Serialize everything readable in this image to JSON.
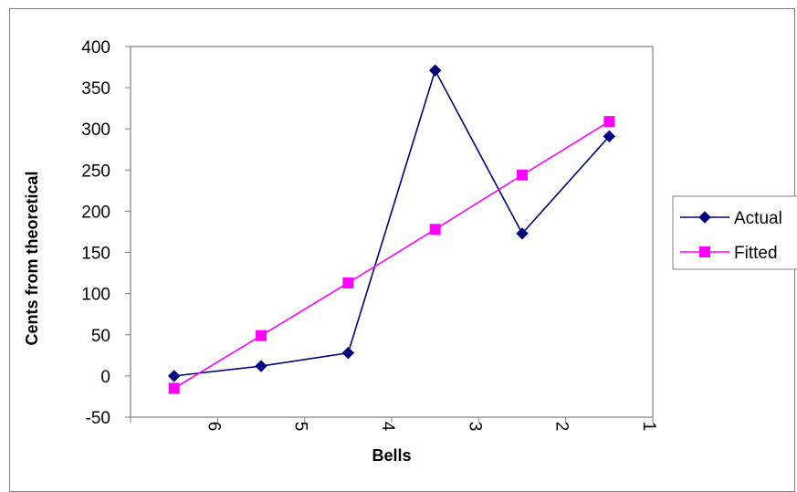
{
  "chart_data": {
    "type": "line",
    "title": "",
    "xlabel": "Bells",
    "ylabel": "Cents from theoretical",
    "categories": [
      "6",
      "5",
      "4",
      "3",
      "2",
      "1"
    ],
    "ylim": [
      -50,
      400
    ],
    "yticks": [
      -50,
      0,
      50,
      100,
      150,
      200,
      250,
      300,
      350,
      400
    ],
    "grid": false,
    "legend_position": "right",
    "series": [
      {
        "name": "Actual",
        "values": [
          0,
          12,
          28,
          371,
          173,
          291
        ],
        "color": "#000080",
        "marker": "diamond"
      },
      {
        "name": "Fitted",
        "values": [
          -15,
          49,
          113,
          178,
          244,
          309
        ],
        "color": "#ff00ff",
        "marker": "square"
      }
    ]
  },
  "colors": {
    "frame": "#808080",
    "axis": "#808080",
    "background": "#ffffff"
  }
}
